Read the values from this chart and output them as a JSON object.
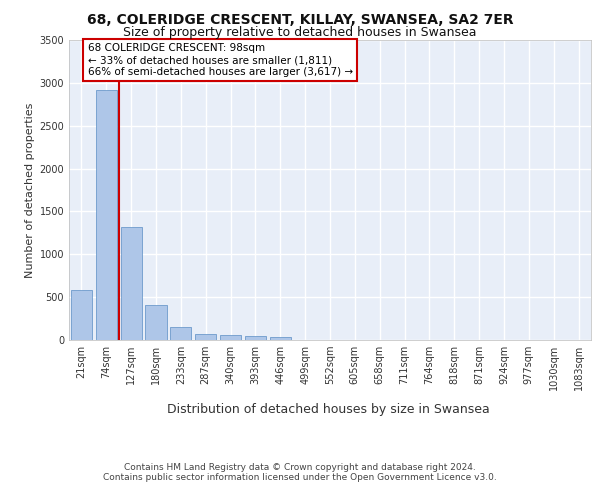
{
  "title_line1": "68, COLERIDGE CRESCENT, KILLAY, SWANSEA, SA2 7ER",
  "title_line2": "Size of property relative to detached houses in Swansea",
  "xlabel": "Distribution of detached houses by size in Swansea",
  "ylabel": "Number of detached properties",
  "categories": [
    "21sqm",
    "74sqm",
    "127sqm",
    "180sqm",
    "233sqm",
    "287sqm",
    "340sqm",
    "393sqm",
    "446sqm",
    "499sqm",
    "552sqm",
    "605sqm",
    "658sqm",
    "711sqm",
    "764sqm",
    "818sqm",
    "871sqm",
    "924sqm",
    "977sqm",
    "1030sqm",
    "1083sqm"
  ],
  "values": [
    580,
    2920,
    1320,
    410,
    155,
    75,
    55,
    45,
    35,
    0,
    0,
    0,
    0,
    0,
    0,
    0,
    0,
    0,
    0,
    0,
    0
  ],
  "bar_color": "#aec6e8",
  "bar_edge_color": "#5b8ec4",
  "red_line_x": 1.5,
  "annotation_title": "68 COLERIDGE CRESCENT: 98sqm",
  "annotation_line1": "← 33% of detached houses are smaller (1,811)",
  "annotation_line2": "66% of semi-detached houses are larger (3,617) →",
  "annotation_box_color": "#cc0000",
  "ylim": [
    0,
    3500
  ],
  "yticks": [
    0,
    500,
    1000,
    1500,
    2000,
    2500,
    3000,
    3500
  ],
  "bg_color": "#e8eef8",
  "grid_color": "#ffffff",
  "title1_fontsize": 10,
  "title2_fontsize": 9,
  "xlabel_fontsize": 9,
  "ylabel_fontsize": 8,
  "tick_fontsize": 7,
  "annot_fontsize": 7.5,
  "footer_fontsize": 6.5,
  "footer_line1": "Contains HM Land Registry data © Crown copyright and database right 2024.",
  "footer_line2": "Contains public sector information licensed under the Open Government Licence v3.0."
}
